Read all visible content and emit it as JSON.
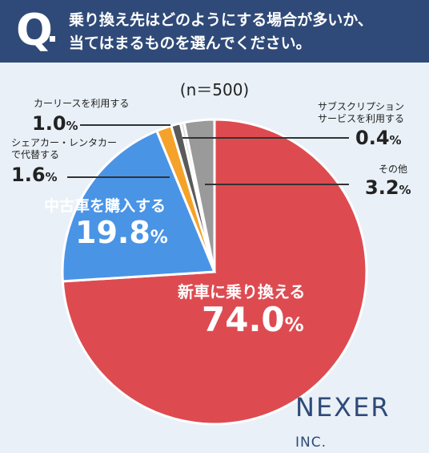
{
  "header": {
    "q_letter": "Q",
    "question_line1": "乗り換え先はどのようにする場合が多いか、",
    "question_line2": "当てはまるものを選んでください。"
  },
  "sample_note": "(n＝500)",
  "brand": {
    "name": "NEXER",
    "suffix": "INC."
  },
  "colors": {
    "header_bg": "#2f4a78",
    "background": "#e9f0f7",
    "new_car": "#dd4b50",
    "used_car": "#4a94e6",
    "car_share": "#f5a22a",
    "car_lease": "#5a5a5a",
    "subscription": "#d9d9d9",
    "other": "#9a9a9a"
  },
  "chart_data": {
    "type": "pie",
    "unit": "%",
    "n": 500,
    "slices": [
      {
        "label": "新車に乗り換える",
        "value": 74.0,
        "value_text": "74.0",
        "color": "#dd4b50"
      },
      {
        "label": "中古車を購入する",
        "value": 19.8,
        "value_text": "19.8",
        "color": "#4a94e6"
      },
      {
        "label_line1": "シェアカー・レンタカー",
        "label_line2": "で代替する",
        "value": 1.6,
        "value_text": "1.6",
        "color": "#f5a22a"
      },
      {
        "label": "カーリースを利用する",
        "value": 1.0,
        "value_text": "1.0",
        "color": "#5a5a5a"
      },
      {
        "label_line1": "サブスクリプション",
        "label_line2": "サービスを利用する",
        "value": 0.4,
        "value_text": "0.4",
        "color": "#d9d9d9"
      },
      {
        "label": "その他",
        "value": 3.2,
        "value_text": "3.2",
        "color": "#9a9a9a"
      }
    ]
  }
}
